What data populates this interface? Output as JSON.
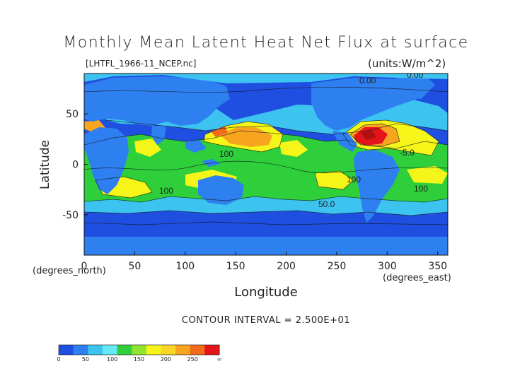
{
  "title": "Monthly Mean Latent Heat Net Flux at surface",
  "file_label": "[LHTFL_1966-11_NCEP.nc]",
  "units_label": "(units:W/m^2)",
  "x_axis": {
    "label": "Longitude",
    "units": "(degrees_east)",
    "ticks": [
      "0",
      "50",
      "100",
      "150",
      "200",
      "250",
      "300",
      "350"
    ],
    "tick_values": [
      0,
      50,
      100,
      150,
      200,
      250,
      300,
      350
    ],
    "range": [
      0,
      360
    ]
  },
  "y_axis": {
    "label": "Latitude",
    "units": "(degrees_north)",
    "ticks": [
      "50",
      "0",
      "-50"
    ],
    "tick_values": [
      50,
      0,
      -50
    ],
    "range": [
      -90,
      90
    ]
  },
  "contour_interval": "CONTOUR INTERVAL = 2.500E+01",
  "contour_labels": [
    "100",
    "100",
    "100",
    "100",
    "50.0",
    "-5.0",
    "0.00",
    "0.00"
  ],
  "colorbar": {
    "labels": [
      "0",
      "50",
      "100",
      "150",
      "200",
      "250",
      "∞"
    ],
    "colors": [
      "#1f4fe0",
      "#2e80f0",
      "#3cc3f0",
      "#67e8f4",
      "#2ecf3a",
      "#8fe52f",
      "#f5f51a",
      "#f9d526",
      "#f7a51f",
      "#f26a1a",
      "#e3141a"
    ]
  },
  "colors": {
    "ocean_low": "#1f4fe0",
    "land_cool": "#2e80f0",
    "cyan": "#3cc3f0",
    "green": "#2ecf3a",
    "yellow": "#f5f51a",
    "orange": "#f7a51f",
    "red": "#e3141a"
  }
}
